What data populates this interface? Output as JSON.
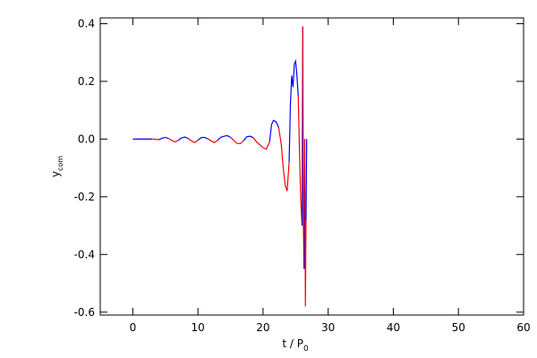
{
  "chart_data": {
    "type": "line",
    "xlabel": {
      "text": "t / P",
      "sub": "0"
    },
    "ylabel": {
      "text": "y",
      "sub": "com"
    },
    "x": [
      0,
      1,
      2,
      3,
      4,
      4.5,
      5,
      5.5,
      6,
      6.5,
      7,
      7.5,
      8,
      8.5,
      9,
      9.5,
      10,
      10.5,
      11,
      11.5,
      12,
      12.5,
      13,
      13.5,
      14,
      14.5,
      15,
      15.5,
      16,
      16.5,
      17,
      17.5,
      18,
      18.5,
      19,
      19.5,
      20,
      20.5,
      21,
      21.3,
      21.6,
      22,
      22.4,
      22.8,
      23.1,
      23.4,
      23.7,
      24,
      24.2,
      24.4,
      24.6,
      24.8,
      25,
      25.2,
      25.4,
      25.6,
      25.8,
      26,
      26.1,
      26.2,
      26.3,
      26.4,
      26.5,
      26.6,
      26.7
    ],
    "values": [
      0,
      0,
      0,
      0,
      -0.002,
      0.003,
      0.006,
      0.002,
      -0.005,
      -0.01,
      -0.004,
      0.004,
      0.007,
      0.002,
      -0.006,
      -0.012,
      -0.004,
      0.005,
      0.006,
      0.001,
      -0.006,
      -0.012,
      -0.005,
      0.006,
      0.01,
      0.012,
      0.006,
      -0.005,
      -0.015,
      -0.016,
      -0.006,
      0.008,
      0.01,
      0.005,
      -0.01,
      -0.02,
      -0.03,
      -0.035,
      -0.01,
      0.05,
      0.065,
      0.06,
      0.04,
      -0.02,
      -0.1,
      -0.16,
      -0.18,
      -0.08,
      0.12,
      0.22,
      0.18,
      0.26,
      0.27,
      0.22,
      0.15,
      -0.05,
      -0.22,
      -0.3,
      0.39,
      -0.3,
      -0.45,
      0.0,
      -0.58,
      -0.28,
      0.0
    ],
    "color_above": "#0000ff",
    "color_below": "#ff0000",
    "xlim": [
      -5,
      60
    ],
    "xticks": [
      0,
      10,
      20,
      30,
      40,
      50,
      60
    ],
    "ylim": [
      -0.61,
      0.42
    ],
    "yticks": [
      -0.6,
      -0.4,
      -0.2,
      {
        "value": 0,
        "label": "0.0"
      },
      0.2,
      0.4
    ]
  }
}
